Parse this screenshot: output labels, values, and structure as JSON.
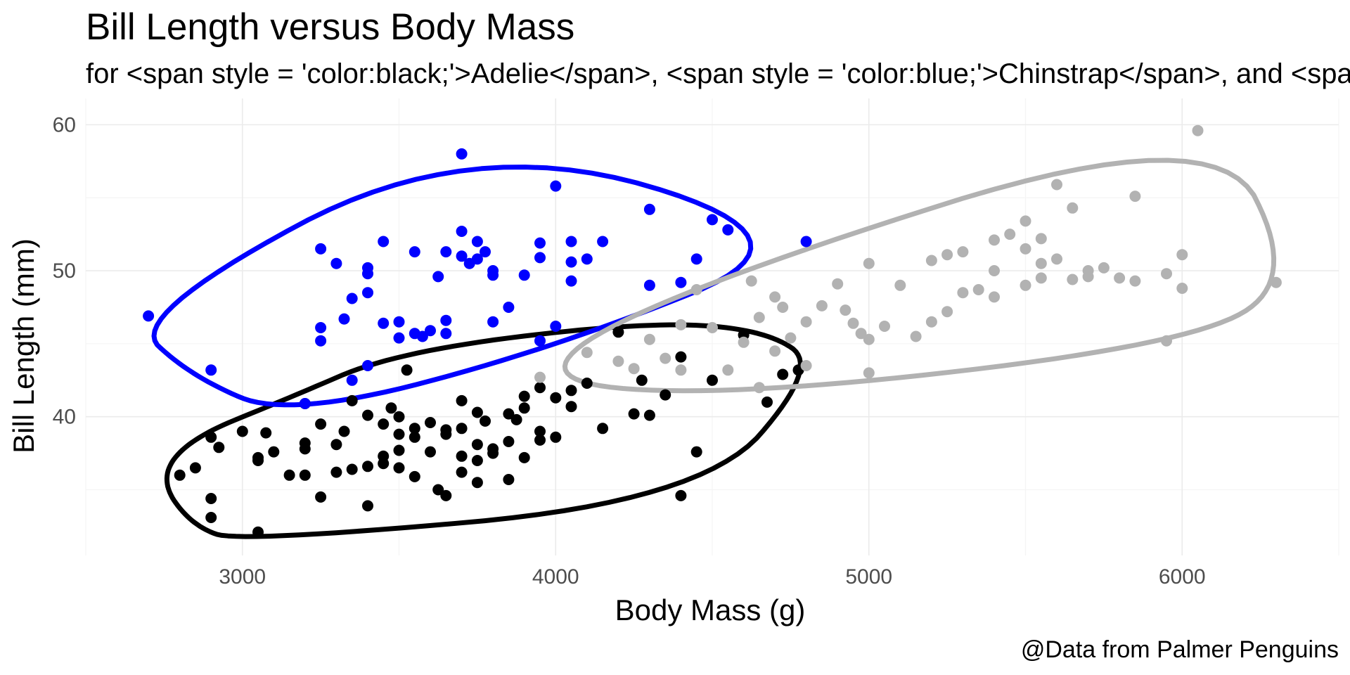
{
  "chart_data": {
    "type": "scatter",
    "title": "Bill Length versus Body Mass",
    "subtitle": "for <span style = 'color:black;'>Adelie</span>, <span style = 'color:blue;'>Chinstrap</span>, and <span style = 'color:gray;'>Gentoo</span>",
    "xlabel": "Body Mass (g)",
    "ylabel": "Bill Length (mm)",
    "caption": "@Data from Palmer Penguins",
    "xlim": [
      2500,
      6500
    ],
    "ylim": [
      30.5,
      61.8
    ],
    "xticks": [
      3000,
      4000,
      5000,
      6000
    ],
    "yticks": [
      40,
      50,
      60
    ],
    "grid": true,
    "legend": "none",
    "hull_style": "smoothed outline around each species",
    "series": [
      {
        "color": "#000000",
        "points": [
          [
            2850,
            36.5
          ],
          [
            2900,
            38.6
          ],
          [
            2900,
            34.4
          ],
          [
            2900,
            33.1
          ],
          [
            2925,
            37.9
          ],
          [
            3050,
            37.2
          ],
          [
            3050,
            37.0
          ],
          [
            3050,
            32.1
          ],
          [
            3075,
            38.9
          ],
          [
            3100,
            37.6
          ],
          [
            3150,
            36.0
          ],
          [
            3200,
            37.8
          ],
          [
            3200,
            36.0
          ],
          [
            3200,
            38.2
          ],
          [
            3250,
            34.5
          ],
          [
            3250,
            39.5
          ],
          [
            3300,
            38.1
          ],
          [
            3300,
            36.2
          ],
          [
            3325,
            39.0
          ],
          [
            3350,
            36.4
          ],
          [
            3350,
            41.1
          ],
          [
            3400,
            40.1
          ],
          [
            3400,
            36.6
          ],
          [
            3400,
            33.9
          ],
          [
            3450,
            37.3
          ],
          [
            3450,
            36.8
          ],
          [
            3450,
            39.5
          ],
          [
            3475,
            40.6
          ],
          [
            3500,
            36.5
          ],
          [
            3500,
            40.0
          ],
          [
            3500,
            38.8
          ],
          [
            3500,
            37.7
          ],
          [
            3525,
            43.2
          ],
          [
            3550,
            39.2
          ],
          [
            3550,
            38.6
          ],
          [
            3550,
            35.9
          ],
          [
            3600,
            39.6
          ],
          [
            3600,
            37.6
          ],
          [
            3625,
            35.0
          ],
          [
            3650,
            39.1
          ],
          [
            3650,
            38.8
          ],
          [
            3650,
            34.6
          ],
          [
            3700,
            39.2
          ],
          [
            3700,
            41.1
          ],
          [
            3700,
            37.3
          ],
          [
            3700,
            36.2
          ],
          [
            3750,
            40.3
          ],
          [
            3750,
            38.1
          ],
          [
            3750,
            35.5
          ],
          [
            3750,
            37.0
          ],
          [
            3775,
            39.7
          ],
          [
            3800,
            37.8
          ],
          [
            3800,
            37.5
          ],
          [
            3850,
            38.3
          ],
          [
            3850,
            40.2
          ],
          [
            3850,
            35.7
          ],
          [
            3875,
            39.8
          ],
          [
            3900,
            40.6
          ],
          [
            3900,
            41.4
          ],
          [
            3900,
            37.2
          ],
          [
            3950,
            39.0
          ],
          [
            3950,
            38.4
          ],
          [
            3950,
            42.0
          ],
          [
            4000,
            41.3
          ],
          [
            4000,
            38.6
          ],
          [
            4050,
            40.7
          ],
          [
            4050,
            41.8
          ],
          [
            4100,
            42.3
          ],
          [
            4150,
            39.2
          ],
          [
            4200,
            45.8
          ],
          [
            4250,
            40.2
          ],
          [
            4275,
            42.5
          ],
          [
            4300,
            40.1
          ],
          [
            4350,
            41.5
          ],
          [
            4400,
            44.1
          ],
          [
            4400,
            34.6
          ],
          [
            4450,
            37.6
          ],
          [
            4500,
            42.5
          ],
          [
            4600,
            45.6
          ],
          [
            4675,
            41.0
          ],
          [
            4725,
            42.9
          ],
          [
            4775,
            43.2
          ],
          [
            3200,
            40.9
          ],
          [
            3000,
            39.0
          ],
          [
            2800,
            36.0
          ]
        ]
      },
      {
        "color": "#0000ff",
        "points": [
          [
            2700,
            46.9
          ],
          [
            2900,
            43.2
          ],
          [
            3200,
            40.9
          ],
          [
            3250,
            51.5
          ],
          [
            3250,
            46.1
          ],
          [
            3250,
            45.2
          ],
          [
            3300,
            50.5
          ],
          [
            3325,
            46.7
          ],
          [
            3350,
            48.1
          ],
          [
            3350,
            42.5
          ],
          [
            3400,
            50.2
          ],
          [
            3400,
            49.8
          ],
          [
            3400,
            48.5
          ],
          [
            3400,
            43.5
          ],
          [
            3450,
            52.0
          ],
          [
            3450,
            46.4
          ],
          [
            3500,
            46.5
          ],
          [
            3500,
            45.4
          ],
          [
            3550,
            51.3
          ],
          [
            3550,
            45.7
          ],
          [
            3575,
            45.5
          ],
          [
            3600,
            45.9
          ],
          [
            3625,
            49.6
          ],
          [
            3650,
            51.3
          ],
          [
            3650,
            46.6
          ],
          [
            3650,
            45.7
          ],
          [
            3700,
            58.0
          ],
          [
            3700,
            52.7
          ],
          [
            3700,
            51.0
          ],
          [
            3725,
            50.5
          ],
          [
            3750,
            52.0
          ],
          [
            3750,
            50.8
          ],
          [
            3775,
            51.3
          ],
          [
            3800,
            50.0
          ],
          [
            3800,
            49.7
          ],
          [
            3800,
            46.5
          ],
          [
            3850,
            47.5
          ],
          [
            3900,
            49.7
          ],
          [
            3950,
            51.9
          ],
          [
            3950,
            50.9
          ],
          [
            3950,
            45.2
          ],
          [
            4000,
            55.8
          ],
          [
            4000,
            46.2
          ],
          [
            4050,
            52.0
          ],
          [
            4050,
            50.6
          ],
          [
            4050,
            49.3
          ],
          [
            4100,
            50.8
          ],
          [
            4150,
            52.0
          ],
          [
            4300,
            54.2
          ],
          [
            4300,
            49.0
          ],
          [
            4400,
            49.2
          ],
          [
            4450,
            50.8
          ],
          [
            4500,
            53.5
          ],
          [
            4550,
            52.8
          ],
          [
            4800,
            52.0
          ]
        ]
      },
      {
        "color": "#b2b2b2",
        "points": [
          [
            3950,
            42.7
          ],
          [
            4100,
            44.4
          ],
          [
            4200,
            43.8
          ],
          [
            4250,
            43.3
          ],
          [
            4300,
            45.3
          ],
          [
            4350,
            44.0
          ],
          [
            4400,
            46.3
          ],
          [
            4400,
            43.2
          ],
          [
            4450,
            48.7
          ],
          [
            4500,
            46.1
          ],
          [
            4550,
            43.2
          ],
          [
            4600,
            45.1
          ],
          [
            4625,
            49.3
          ],
          [
            4650,
            46.8
          ],
          [
            4650,
            42.0
          ],
          [
            4700,
            48.2
          ],
          [
            4700,
            44.5
          ],
          [
            4725,
            47.5
          ],
          [
            4750,
            45.4
          ],
          [
            4800,
            46.5
          ],
          [
            4800,
            43.5
          ],
          [
            4850,
            47.6
          ],
          [
            4900,
            49.1
          ],
          [
            4925,
            47.3
          ],
          [
            4950,
            46.4
          ],
          [
            4975,
            45.7
          ],
          [
            5000,
            50.5
          ],
          [
            5000,
            45.3
          ],
          [
            5000,
            43.0
          ],
          [
            5050,
            46.2
          ],
          [
            5100,
            49.0
          ],
          [
            5150,
            45.5
          ],
          [
            5200,
            50.7
          ],
          [
            5200,
            46.5
          ],
          [
            5250,
            51.1
          ],
          [
            5250,
            47.2
          ],
          [
            5300,
            51.3
          ],
          [
            5300,
            48.5
          ],
          [
            5350,
            48.7
          ],
          [
            5400,
            52.1
          ],
          [
            5400,
            50.0
          ],
          [
            5400,
            48.2
          ],
          [
            5450,
            52.5
          ],
          [
            5500,
            53.4
          ],
          [
            5500,
            51.5
          ],
          [
            5500,
            49.0
          ],
          [
            5550,
            52.2
          ],
          [
            5550,
            50.5
          ],
          [
            5550,
            49.5
          ],
          [
            5600,
            55.9
          ],
          [
            5600,
            50.8
          ],
          [
            5650,
            54.3
          ],
          [
            5650,
            49.4
          ],
          [
            5700,
            50.0
          ],
          [
            5700,
            49.6
          ],
          [
            5750,
            50.2
          ],
          [
            5800,
            49.5
          ],
          [
            5850,
            55.1
          ],
          [
            5850,
            49.3
          ],
          [
            5950,
            49.8
          ],
          [
            5950,
            45.2
          ],
          [
            6000,
            51.1
          ],
          [
            6000,
            48.8
          ],
          [
            6050,
            59.6
          ],
          [
            6300,
            49.2
          ]
        ]
      }
    ]
  }
}
